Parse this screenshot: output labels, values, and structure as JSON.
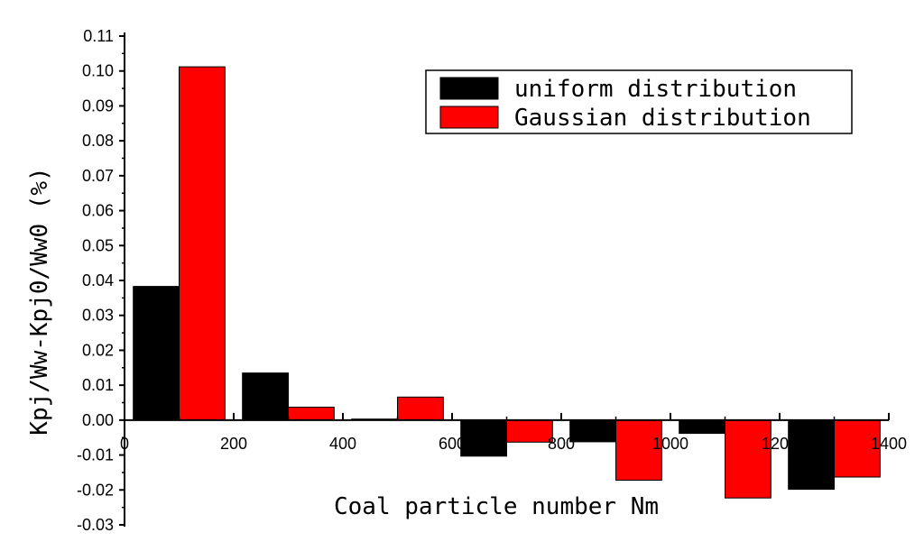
{
  "chart_data": {
    "type": "bar",
    "title": "",
    "xlabel": "Coal particle number Nm",
    "ylabel": "Kpj/Ww-Kpj0/Ww0 (%)",
    "xlim": [
      0,
      1400
    ],
    "ylim": [
      -0.03,
      0.11
    ],
    "x_ticks": [
      "0",
      "200",
      "400",
      "600",
      "800",
      "1000",
      "1200",
      "1400"
    ],
    "y_ticks": [
      "0.11",
      "0.10",
      "0.09",
      "0.08",
      "0.07",
      "0.06",
      "0.05",
      "0.04",
      "0.03",
      "0.02",
      "0.01",
      "0.00",
      "-0.01",
      "-0.02",
      "-0.03"
    ],
    "categories": [
      100,
      300,
      500,
      700,
      900,
      1100,
      1300
    ],
    "series": [
      {
        "name": "uniform distribution",
        "color": "#000000",
        "values": [
          0.0383,
          0.0135,
          0.0003,
          -0.0103,
          -0.0062,
          -0.0038,
          -0.0198
        ]
      },
      {
        "name": "Gaussian distribution",
        "color": "#ff0000",
        "values": [
          0.1012,
          0.0037,
          0.0066,
          -0.0063,
          -0.0172,
          -0.0223,
          -0.0163
        ]
      }
    ],
    "legend_position": "top-right",
    "grid": false
  }
}
